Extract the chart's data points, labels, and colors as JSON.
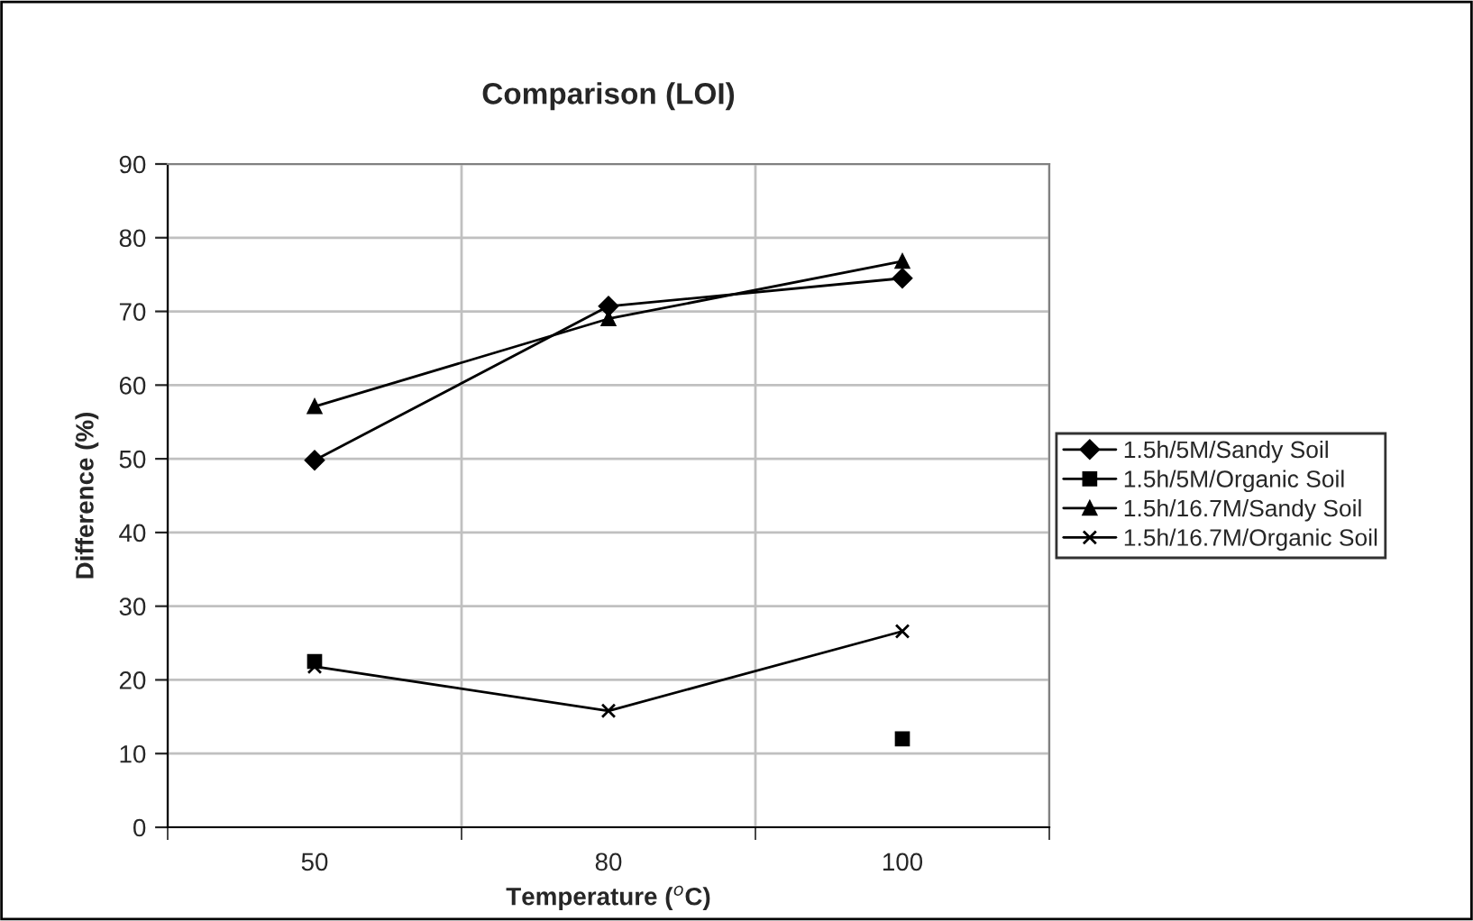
{
  "chart_data": {
    "type": "line",
    "title": "Comparison (LOI)",
    "xlabel": "Temperature ($^{o}$C)",
    "ylabel": "Difference (%)",
    "categories": [
      "50",
      "80",
      "100"
    ],
    "series": [
      {
        "name": "1.5h/5M/Sandy Soil",
        "color": "#000000",
        "marker": "diamond",
        "values": [
          49.8,
          70.7,
          74.5
        ]
      },
      {
        "name": "1.5h/5M/Organic Soil",
        "color": "#000000",
        "marker": "square",
        "values": [
          22.5,
          null,
          12
        ]
      },
      {
        "name": "1.5h/16.7M/Sandy Soil",
        "color": "#000000",
        "marker": "triangle",
        "values": [
          57.1,
          69,
          76.8
        ]
      },
      {
        "name": "1.5h/16.7M/Organic Soil",
        "color": "#000000",
        "marker": "cross",
        "values": [
          21.8,
          15.8,
          26.6
        ]
      }
    ],
    "ylim": [
      0,
      90
    ],
    "yticks": [
      0,
      10,
      20,
      30,
      40,
      50,
      60,
      70,
      80,
      90
    ],
    "grid": true,
    "legend": "right",
    "line_style": "solid"
  }
}
